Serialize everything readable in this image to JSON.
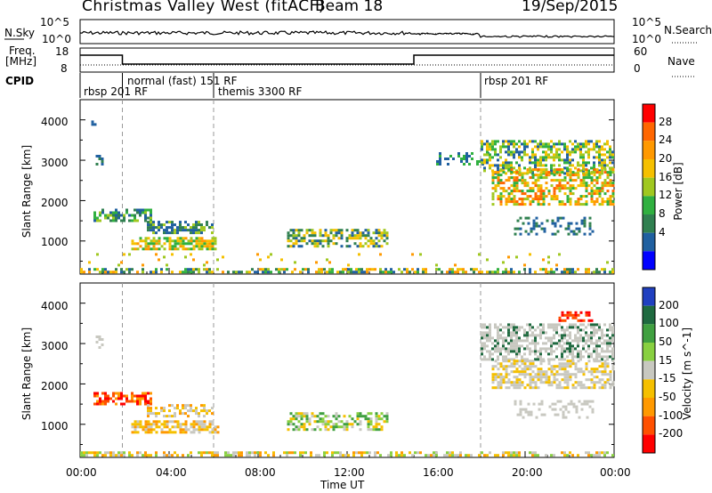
{
  "header": {
    "title": "Christmas Valley West (fitACF)",
    "beam": "Beam 18",
    "date": "19/Sep/2015"
  },
  "status_panels": {
    "nsky_label": "N.Sky",
    "nsearch_label": "N.Search",
    "noise_ticks": [
      "10^5",
      "10^0"
    ],
    "freq_label_1": "Freq.",
    "freq_label_2": "[MHz]",
    "freq_ticks": [
      "18",
      "8"
    ],
    "nave_ticks": [
      "60",
      "0"
    ],
    "nave_label": "Nave",
    "cpid_label": "CPID",
    "cpid_segments": [
      {
        "label": "rbsp 201 RF",
        "start_hour": 0.0
      },
      {
        "label": "normal (fast) 151 RF",
        "start_hour": 1.9
      },
      {
        "label": "themis 3300 RF",
        "start_hour": 6.0
      },
      {
        "label": "rbsp 201 RF",
        "start_hour": 18.0
      }
    ]
  },
  "chart_data": [
    {
      "type": "heatmap",
      "name": "power",
      "ylabel": "Slant Range [km]",
      "colorbar_label": "Power [dB]",
      "colorbar_ticks": [
        "28",
        "24",
        "20",
        "16",
        "12",
        "8",
        "4"
      ],
      "colors": [
        "#ff0000",
        "#ff6600",
        "#ff9900",
        "#f5c000",
        "#a0c820",
        "#30b040",
        "#308050",
        "#2060a0",
        "#0000ff"
      ],
      "ylim": [
        180,
        4500
      ],
      "yticks": [
        "4000",
        "3000",
        "2000",
        "1000"
      ],
      "xlim_hours": [
        0,
        24
      ],
      "dashed_lines_hours": [
        1.9,
        6.0,
        18.0
      ]
    },
    {
      "type": "heatmap",
      "name": "velocity",
      "ylabel": "Slant Range [km]",
      "colorbar_label": "Velocity [m s^-1]",
      "colorbar_ticks": [
        "200",
        "100",
        "50",
        "15",
        "-15",
        "-50",
        "-100",
        "-200"
      ],
      "colors": [
        "#2040c0",
        "#1f6a40",
        "#40a040",
        "#88d040",
        "#c8c8c0",
        "#f5c000",
        "#ff9900",
        "#ff5000",
        "#ff0000"
      ],
      "ylim": [
        180,
        4500
      ],
      "yticks": [
        "4000",
        "3000",
        "2000",
        "1000"
      ],
      "xlim_hours": [
        0,
        24
      ],
      "dashed_lines_hours": [
        1.9,
        6.0,
        18.0
      ]
    }
  ],
  "xaxis": {
    "ticks": [
      "00:00",
      "04:00",
      "08:00",
      "12:00",
      "16:00",
      "20:00",
      "00:00"
    ],
    "label": "Time UT"
  }
}
